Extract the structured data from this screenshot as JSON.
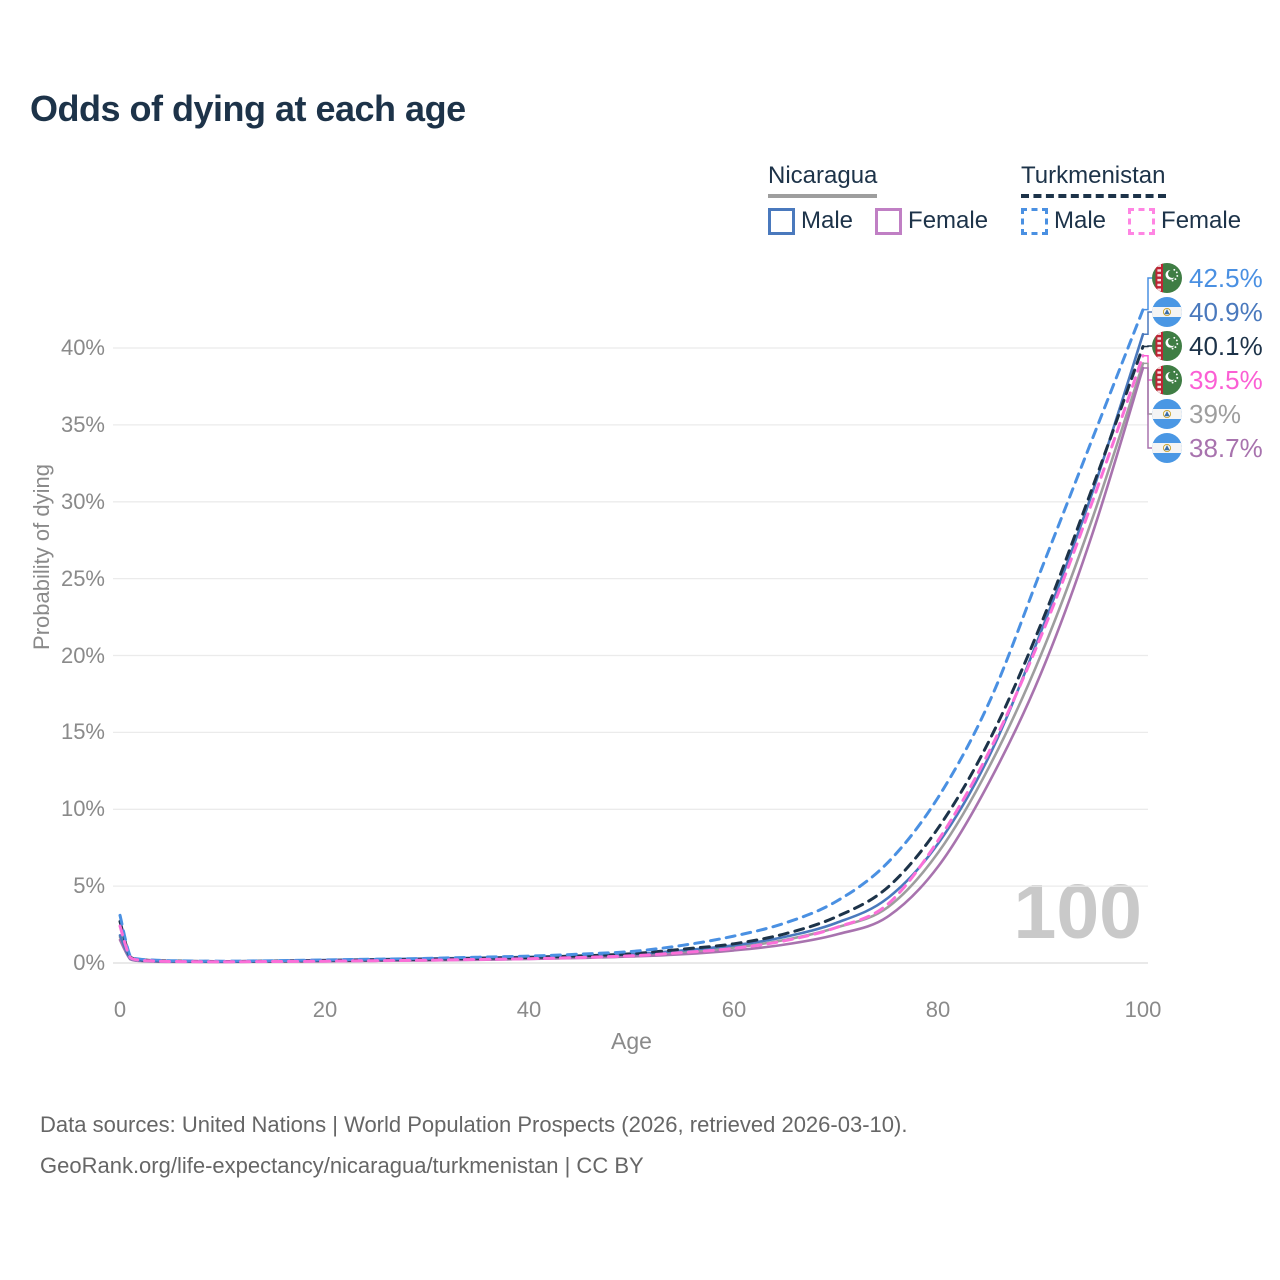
{
  "page": {
    "title": "Odds of dying at each age",
    "watermark": "100",
    "footer_line1": "Data sources: United Nations | World Population Prospects (2026, retrieved 2026-03-10).",
    "footer_line2": "GeoRank.org/life-expectancy/nicaragua/turkmenistan | CC BY"
  },
  "legend": {
    "groups": [
      {
        "label": "Nicaragua",
        "line_style": "solid",
        "underline_color": "#9e9e9e",
        "items": [
          {
            "label": "Male",
            "swatch_color": "#4a79bd",
            "swatch_style": "solid"
          },
          {
            "label": "Female",
            "swatch_color": "#c07fc4",
            "swatch_style": "solid"
          }
        ]
      },
      {
        "label": "Turkmenistan",
        "line_style": "dashed",
        "underline_color": "#1d3349",
        "items": [
          {
            "label": "Male",
            "swatch_color": "#4a90e2",
            "swatch_style": "dashed"
          },
          {
            "label": "Female",
            "swatch_color": "#ff85e3",
            "swatch_style": "dashed"
          }
        ]
      }
    ]
  },
  "chart_data": {
    "type": "line",
    "title": "Odds of dying at each age",
    "xlabel": "Age",
    "ylabel": "Probability of dying",
    "xlim": [
      0,
      100
    ],
    "ylim": [
      0,
      43
    ],
    "x_ticks": [
      0,
      20,
      40,
      60,
      80,
      100
    ],
    "y_ticks": [
      "0%",
      "5%",
      "10%",
      "15%",
      "20%",
      "25%",
      "30%",
      "35%",
      "40%"
    ],
    "grid": "horizontal",
    "legend_position": "top-right",
    "ages": [
      0,
      1,
      2,
      3,
      5,
      10,
      15,
      20,
      25,
      30,
      35,
      40,
      45,
      50,
      55,
      60,
      65,
      70,
      75,
      80,
      85,
      90,
      95,
      100
    ],
    "series": [
      {
        "id": "ni_all",
        "name": "Nicaragua (both sexes)",
        "country": "Nicaragua",
        "sex": "all",
        "style": "solid",
        "color": "#9e9e9e",
        "values": [
          1.7,
          0.28,
          0.15,
          0.12,
          0.09,
          0.08,
          0.11,
          0.16,
          0.2,
          0.24,
          0.29,
          0.34,
          0.42,
          0.5,
          0.72,
          1.0,
          1.5,
          2.3,
          3.6,
          7.2,
          12.8,
          20.0,
          28.8,
          39.0
        ]
      },
      {
        "id": "ni_female",
        "name": "Nicaragua Female",
        "country": "Nicaragua",
        "sex": "female",
        "style": "solid",
        "color": "#a873ae",
        "values": [
          1.5,
          0.25,
          0.13,
          0.1,
          0.08,
          0.07,
          0.09,
          0.11,
          0.14,
          0.17,
          0.21,
          0.26,
          0.33,
          0.42,
          0.57,
          0.82,
          1.2,
          1.85,
          3.0,
          6.3,
          11.8,
          18.8,
          27.8,
          38.7
        ]
      },
      {
        "id": "ni_male",
        "name": "Nicaragua Male",
        "country": "Nicaragua",
        "sex": "male",
        "style": "solid",
        "color": "#4a79bd",
        "values": [
          1.8,
          0.3,
          0.17,
          0.13,
          0.1,
          0.1,
          0.14,
          0.19,
          0.24,
          0.29,
          0.34,
          0.4,
          0.47,
          0.57,
          0.82,
          1.15,
          1.7,
          2.6,
          4.2,
          7.8,
          13.5,
          21.5,
          30.5,
          40.9
        ]
      },
      {
        "id": "tm_all",
        "name": "Turkmenistan (both sexes)",
        "country": "Turkmenistan",
        "sex": "all",
        "style": "dashed",
        "color": "#1d3349",
        "values": [
          2.7,
          0.4,
          0.22,
          0.17,
          0.13,
          0.1,
          0.12,
          0.16,
          0.2,
          0.24,
          0.3,
          0.36,
          0.46,
          0.6,
          0.9,
          1.25,
          1.9,
          3.0,
          4.9,
          8.8,
          14.5,
          22.0,
          30.8,
          40.1
        ]
      },
      {
        "id": "tm_male",
        "name": "Turkmenistan Male",
        "country": "Turkmenistan",
        "sex": "male",
        "style": "dashed",
        "color": "#4a90e2",
        "values": [
          3.1,
          0.45,
          0.25,
          0.2,
          0.15,
          0.12,
          0.15,
          0.2,
          0.25,
          0.3,
          0.38,
          0.45,
          0.58,
          0.75,
          1.15,
          1.75,
          2.6,
          4.0,
          6.5,
          10.8,
          17.0,
          25.5,
          34.0,
          42.5
        ]
      },
      {
        "id": "tm_female",
        "name": "Turkmenistan Female",
        "country": "Turkmenistan",
        "sex": "female",
        "style": "dashed",
        "color": "#fb6fd8",
        "values": [
          2.4,
          0.35,
          0.18,
          0.14,
          0.1,
          0.08,
          0.1,
          0.12,
          0.15,
          0.18,
          0.23,
          0.28,
          0.36,
          0.47,
          0.68,
          0.95,
          1.45,
          2.3,
          3.8,
          8.0,
          13.8,
          21.2,
          29.9,
          39.5
        ]
      }
    ],
    "end_labels": [
      {
        "series": "tm_male",
        "value": "42.5%",
        "flag": "turkmenistan",
        "color": "#4a90e2"
      },
      {
        "series": "ni_male",
        "value": "40.9%",
        "flag": "nicaragua",
        "color": "#4a79bd"
      },
      {
        "series": "tm_all",
        "value": "40.1%",
        "flag": "turkmenistan",
        "color": "#1d3349"
      },
      {
        "series": "tm_female",
        "value": "39.5%",
        "flag": "turkmenistan",
        "color": "#fb5fd4"
      },
      {
        "series": "ni_all",
        "value": "39%",
        "flag": "nicaragua",
        "color": "#9e9e9e"
      },
      {
        "series": "ni_female",
        "value": "38.7%",
        "flag": "nicaragua",
        "color": "#a873ae"
      }
    ]
  }
}
